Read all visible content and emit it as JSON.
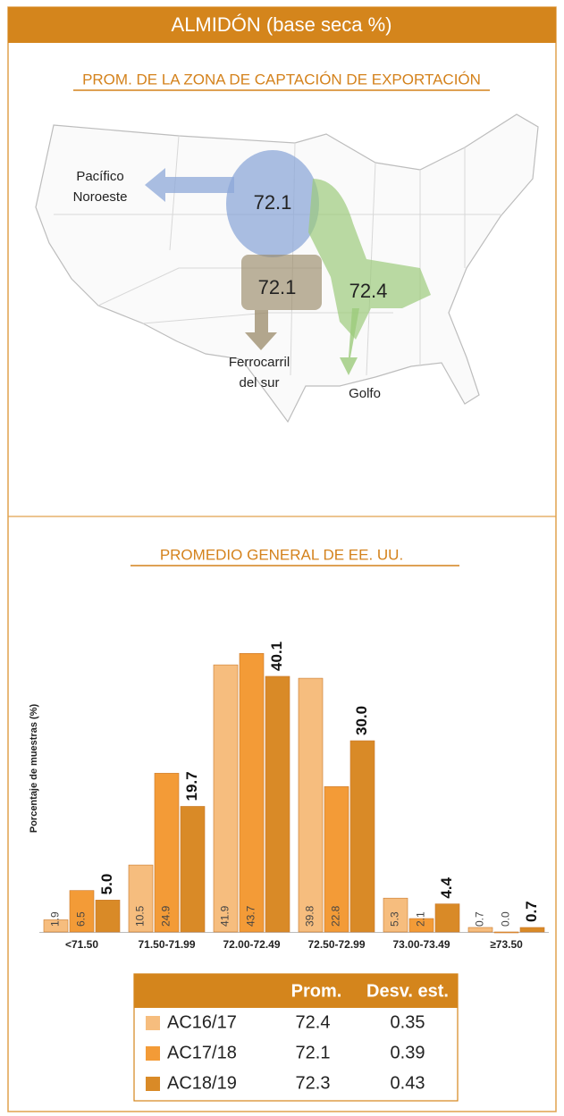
{
  "header": {
    "title": "ALMIDÓN (base seca %)"
  },
  "map": {
    "title": "PROM. DE LA ZONA DE CAPTACIÓN DE EXPORTACIÓN",
    "regions": [
      {
        "label": [
          "Pacífico",
          "Noroeste"
        ],
        "value": 72.1
      },
      {
        "label": [
          "Ferrocarril",
          "del sur"
        ],
        "value": 72.1
      },
      {
        "label": [
          "Golfo"
        ],
        "value": 72.4
      }
    ]
  },
  "chart_data": {
    "type": "bar",
    "title": "PROMEDIO GENERAL DE EE. UU.",
    "y_label": "Porcentaje de muestras (%)",
    "categories": [
      "<71.50",
      "71.50-71.99",
      "72.00-72.49",
      "72.50-72.99",
      "73.00-73.49",
      "≥73.50"
    ],
    "ylim": [
      0,
      45
    ],
    "series": [
      {
        "name": "AC16/17",
        "color": "#f6bd7e",
        "values": [
          1.9,
          10.5,
          41.9,
          39.8,
          5.3,
          0.7
        ],
        "value_labels": [
          "1.9",
          "10.5",
          "41.9",
          "39.8",
          "5.3",
          "0.7"
        ]
      },
      {
        "name": "AC17/18",
        "color": "#f39b37",
        "values": [
          6.5,
          24.9,
          43.7,
          22.8,
          2.1,
          0.0
        ],
        "value_labels": [
          "6.5",
          "24.9",
          "43.7",
          "22.8",
          "2.1",
          "0.0"
        ]
      },
      {
        "name": "AC18/19",
        "color": "#d98a27",
        "values": [
          5.0,
          19.7,
          40.1,
          30.0,
          4.4,
          0.7
        ],
        "value_labels": [
          "5.0",
          "19.7",
          "40.1",
          "30.0",
          "4.4",
          "0.7"
        ]
      }
    ]
  },
  "table": {
    "columns": [
      "Prom.",
      "Desv. est."
    ],
    "rows": [
      [
        72.4,
        0.35
      ],
      [
        72.1,
        0.39
      ],
      [
        72.3,
        0.43
      ]
    ]
  }
}
